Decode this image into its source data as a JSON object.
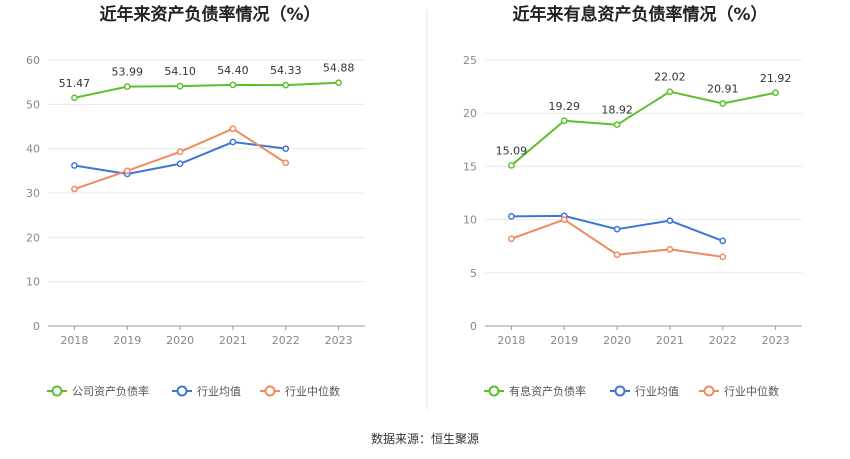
{
  "source_text": "数据来源：恒生聚源",
  "colors": {
    "company": "#5cc02e",
    "avg": "#3e75d6",
    "median": "#f08a5d"
  },
  "chart_data": [
    {
      "type": "line",
      "title": "近年来资产负债率情况（%）",
      "categories": [
        "2018",
        "2019",
        "2020",
        "2021",
        "2022",
        "2023"
      ],
      "ylim": [
        0,
        60
      ],
      "yticks": [
        0,
        10,
        20,
        30,
        40,
        50,
        60
      ],
      "grid": true,
      "legend_position": "bottom",
      "series": [
        {
          "name": "公司资产负债率",
          "color": "#5cc02e",
          "values": [
            51.47,
            53.99,
            54.1,
            54.4,
            54.33,
            54.88
          ],
          "labels": [
            "51.47",
            "53.99",
            "54.10",
            "54.40",
            "54.33",
            "54.88"
          ]
        },
        {
          "name": "行业均值",
          "color": "#3e75d6",
          "values": [
            36.2,
            34.3,
            36.6,
            41.5,
            40.0,
            null
          ]
        },
        {
          "name": "行业中位数",
          "color": "#f08a5d",
          "values": [
            30.9,
            35.0,
            39.3,
            44.5,
            36.8,
            null
          ]
        }
      ]
    },
    {
      "type": "line",
      "title": "近年来有息资产负债率情况（%）",
      "categories": [
        "2018",
        "2019",
        "2020",
        "2021",
        "2022",
        "2023"
      ],
      "ylim": [
        0,
        25
      ],
      "yticks": [
        0,
        5,
        10,
        15,
        20,
        25
      ],
      "grid": true,
      "legend_position": "bottom",
      "series": [
        {
          "name": "有息资产负债率",
          "color": "#5cc02e",
          "values": [
            15.09,
            19.29,
            18.92,
            22.02,
            20.91,
            21.92
          ],
          "labels": [
            "15.09",
            "19.29",
            "18.92",
            "22.02",
            "20.91",
            "21.92"
          ]
        },
        {
          "name": "行业均值",
          "color": "#3e75d6",
          "values": [
            10.3,
            10.35,
            9.1,
            9.9,
            8.0,
            null
          ]
        },
        {
          "name": "行业中位数",
          "color": "#f08a5d",
          "values": [
            8.2,
            10.0,
            6.7,
            7.2,
            6.5,
            null
          ]
        }
      ]
    }
  ]
}
